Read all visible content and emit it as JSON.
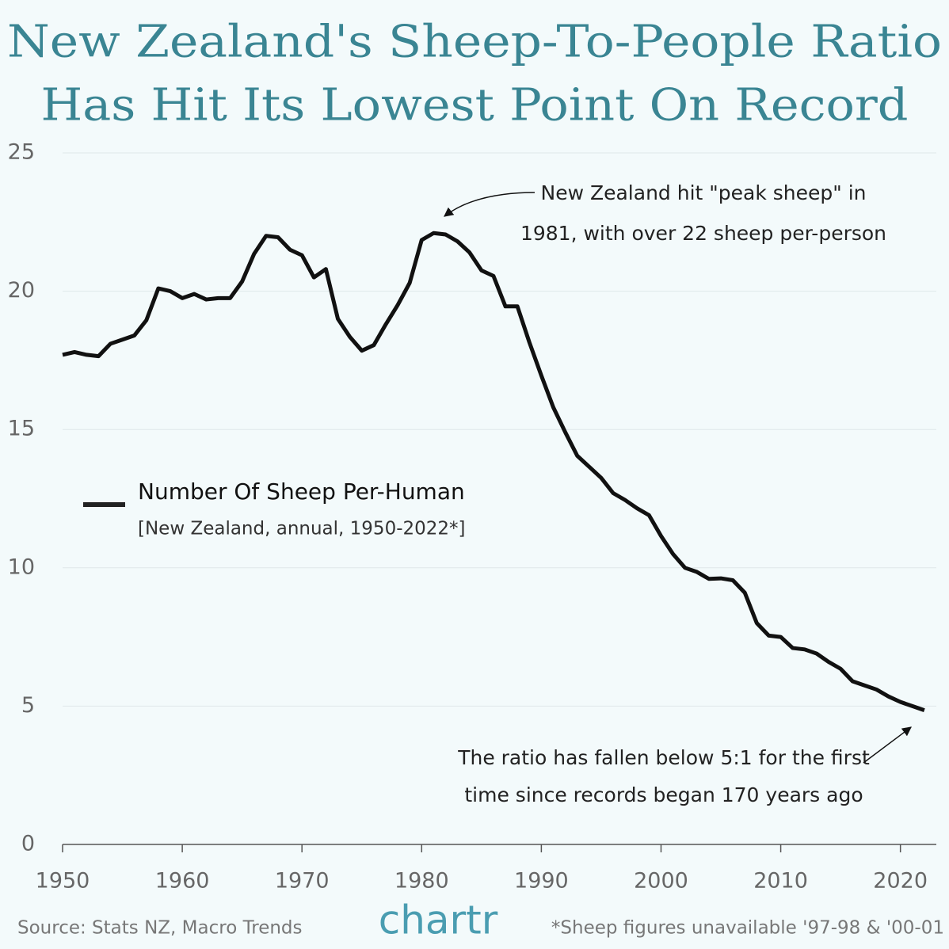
{
  "chart_data": {
    "type": "line",
    "title": [
      "New Zealand's Sheep-To-People Ratio",
      "Has Hit Its Lowest Point On Record"
    ],
    "subtitle": "[New Zealand, annual, 1950-2022*]",
    "x": [
      1950,
      1951,
      1952,
      1953,
      1954,
      1955,
      1956,
      1957,
      1958,
      1959,
      1960,
      1961,
      1962,
      1963,
      1964,
      1965,
      1966,
      1967,
      1968,
      1969,
      1970,
      1971,
      1972,
      1973,
      1974,
      1975,
      1976,
      1977,
      1978,
      1979,
      1980,
      1981,
      1982,
      1983,
      1984,
      1985,
      1986,
      1987,
      1988,
      1989,
      1990,
      1991,
      1992,
      1993,
      1994,
      1995,
      1996,
      1997,
      1998,
      1999,
      2000,
      2001,
      2002,
      2003,
      2004,
      2005,
      2006,
      2007,
      2008,
      2009,
      2010,
      2011,
      2012,
      2013,
      2014,
      2015,
      2016,
      2017,
      2018,
      2019,
      2020,
      2021,
      2022
    ],
    "series": [
      {
        "name": "Number Of Sheep Per-Human",
        "color": "#111111",
        "values": [
          17.7,
          17.8,
          17.7,
          17.65,
          18.1,
          18.25,
          18.4,
          18.95,
          20.1,
          20.0,
          19.75,
          19.9,
          19.7,
          19.75,
          19.75,
          20.35,
          21.35,
          22.0,
          21.95,
          21.5,
          21.3,
          20.5,
          20.8,
          19.0,
          18.35,
          17.85,
          18.05,
          18.8,
          19.5,
          20.3,
          21.85,
          22.1,
          22.05,
          21.8,
          21.4,
          20.75,
          20.55,
          19.45,
          19.45,
          18.15,
          16.95,
          15.8,
          14.9,
          14.05,
          13.65,
          13.25,
          12.7,
          12.45,
          12.15,
          11.9,
          11.15,
          10.5,
          10.0,
          9.85,
          9.6,
          9.62,
          9.55,
          9.1,
          8.0,
          7.55,
          7.5,
          7.1,
          7.05,
          6.9,
          6.6,
          6.35,
          5.9,
          5.75,
          5.6,
          5.35,
          5.15,
          5.0,
          4.85
        ]
      }
    ],
    "xlim": [
      1950,
      2023
    ],
    "xticks": [
      1950,
      1960,
      1970,
      1980,
      1990,
      2000,
      2010,
      2020
    ],
    "ylim": [
      0,
      25
    ],
    "yticks": [
      0,
      5,
      10,
      15,
      20,
      25
    ],
    "grid": true,
    "annotations": [
      {
        "text": [
          "New Zealand hit \"peak sheep\" in",
          "1981, with over 22 sheep per-person"
        ]
      },
      {
        "text": [
          "The ratio has fallen below 5:1 for the first",
          "time since records began 170 years ago"
        ]
      }
    ],
    "source": "Source: Stats NZ, Macro Trends",
    "logo": "chartr",
    "note": "*Sheep figures unavailable '97-98 & '00-01"
  }
}
